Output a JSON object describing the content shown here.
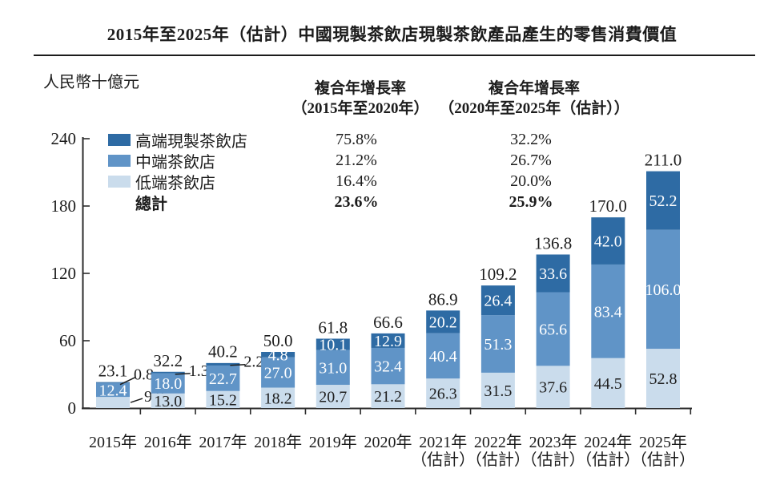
{
  "title": "2015年至2025年（估計）中國現製茶飲店現製茶飲產品產生的零售消費價值",
  "unit_label": "人民幣十億元",
  "cagr_columns": [
    {
      "header_line1": "複合年增長率",
      "header_line2": "（2015年至2020年）"
    },
    {
      "header_line1": "複合年增長率",
      "header_line2": "（2020年至2025年（估計））"
    }
  ],
  "legend_rows": [
    {
      "label": "高端現製茶飲店",
      "swatch": "#2e6ba4",
      "cagr_2015_2020": "75.8%",
      "cagr_2020_2025": "32.2%",
      "bold": false
    },
    {
      "label": "中端茶飲店",
      "swatch": "#6094c7",
      "cagr_2015_2020": "21.2%",
      "cagr_2020_2025": "26.7%",
      "bold": false
    },
    {
      "label": "低端茶飲店",
      "swatch": "#cadcec",
      "cagr_2015_2020": "16.4%",
      "cagr_2020_2025": "20.0%",
      "bold": false
    },
    {
      "label": "總計",
      "swatch": null,
      "cagr_2015_2020": "23.6%",
      "cagr_2020_2025": "25.9%",
      "bold": true
    }
  ],
  "chart_data": {
    "type": "bar",
    "stacked": true,
    "unit": "人民幣十億元",
    "ylim": [
      0,
      240
    ],
    "yticks": [
      0,
      60,
      120,
      180,
      240
    ],
    "categories": [
      [
        "2015年",
        ""
      ],
      [
        "2016年",
        ""
      ],
      [
        "2017年",
        ""
      ],
      [
        "2018年",
        ""
      ],
      [
        "2019年",
        ""
      ],
      [
        "2020年",
        ""
      ],
      [
        "2021年",
        "（估計）"
      ],
      [
        "2022年",
        "（估計）"
      ],
      [
        "2023年",
        "（估計）"
      ],
      [
        "2024年",
        "（估計）"
      ],
      [
        "2025年",
        "（估計）"
      ]
    ],
    "series": [
      {
        "name": "低端茶飲店",
        "color": "#cadcec",
        "label_color": "#1f1f1f",
        "values": [
          9.9,
          13.0,
          15.2,
          18.2,
          20.7,
          21.2,
          26.3,
          31.5,
          37.6,
          44.5,
          52.8
        ],
        "labels": [
          "9.9",
          "13.0",
          "15.2",
          "18.2",
          "20.7",
          "21.2",
          "26.3",
          "31.5",
          "37.6",
          "44.5",
          "52.8"
        ]
      },
      {
        "name": "中端茶飲店",
        "color": "#6094c7",
        "label_color": "#ffffff",
        "values": [
          12.4,
          18.0,
          22.7,
          27.0,
          31.0,
          32.4,
          40.4,
          51.3,
          65.6,
          83.4,
          106.0
        ],
        "labels": [
          "12.4",
          "18.0",
          "22.7",
          "27.0",
          "31.0",
          "32.4",
          "40.4",
          "51.3",
          "65.6",
          "83.4",
          "106.0"
        ]
      },
      {
        "name": "高端現製茶飲店",
        "color": "#2e6ba4",
        "label_color": "#ffffff",
        "values": [
          0.8,
          1.3,
          2.2,
          4.8,
          10.1,
          12.9,
          20.2,
          26.4,
          33.6,
          42.0,
          52.2
        ],
        "labels": [
          "0.8",
          "1.3",
          "2.2",
          "4.8",
          "10.1",
          "12.9",
          "20.2",
          "26.4",
          "33.6",
          "42.0",
          "52.2"
        ]
      }
    ],
    "totals": {
      "values": [
        23.1,
        32.2,
        40.2,
        50.0,
        61.8,
        66.6,
        86.9,
        109.2,
        136.8,
        170.0,
        211.0
      ],
      "labels": [
        "23.1",
        "32.2",
        "40.2",
        "50.0",
        "61.8",
        "66.6",
        "86.9",
        "109.2",
        "136.8",
        "170.0",
        "211.0"
      ]
    }
  },
  "colors": {
    "axis": "#2b2b2b",
    "text": "#1c1c1c"
  }
}
